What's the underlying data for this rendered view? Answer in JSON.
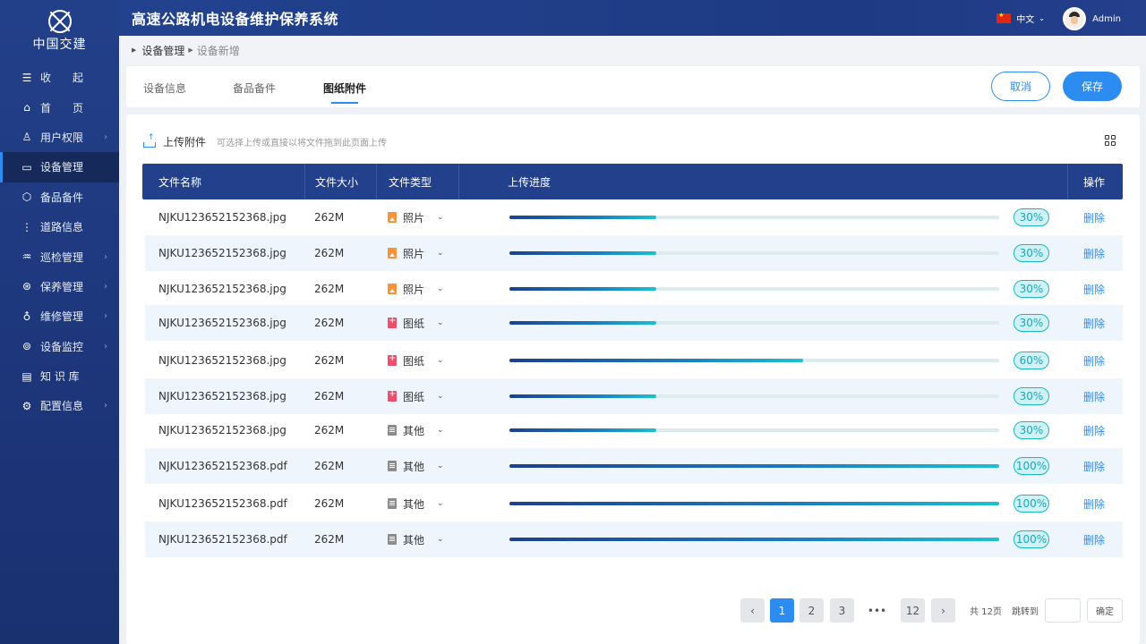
{
  "sidebar": {
    "logo_text": "中国交建",
    "items": [
      {
        "label": "收　　起",
        "icon": "☰",
        "has_arrow": false
      },
      {
        "label": "首　　页",
        "icon": "⌂",
        "has_arrow": false
      },
      {
        "label": "用户权限",
        "icon": "♙",
        "has_arrow": true
      },
      {
        "label": "设备管理",
        "icon": "▭",
        "has_arrow": false
      },
      {
        "label": "备品备件",
        "icon": "⬡",
        "has_arrow": false
      },
      {
        "label": "道路信息",
        "icon": "⋮",
        "has_arrow": false
      },
      {
        "label": "巡检管理",
        "icon": "♒",
        "has_arrow": true
      },
      {
        "label": "保养管理",
        "icon": "⊛",
        "has_arrow": true
      },
      {
        "label": "维修管理",
        "icon": "♁",
        "has_arrow": true
      },
      {
        "label": "设备监控",
        "icon": "⊚",
        "has_arrow": true
      },
      {
        "label": "知 识 库",
        "icon": "▤",
        "has_arrow": false
      },
      {
        "label": "配置信息",
        "icon": "⚙",
        "has_arrow": true
      }
    ]
  },
  "header": {
    "title": "高速公路机电设备维护保养系统",
    "language": "中文",
    "username": "Admin"
  },
  "breadcrumb": {
    "parent": "设备管理",
    "current": "设备新增"
  },
  "tabs": [
    "设备信息",
    "备品备件",
    "图纸附件"
  ],
  "actions": {
    "cancel": "取消",
    "save": "保存"
  },
  "upload": {
    "label": "上传附件",
    "hint": "可选择上传或直接以将文件拖到此页面上传"
  },
  "table": {
    "headers": {
      "name": "文件名称",
      "size": "文件大小",
      "type": "文件类型",
      "progress": "上传进度",
      "action": "操作"
    },
    "delete_label": "删除",
    "rows": [
      {
        "name": "NJKU123652152368.jpg",
        "size": "262M",
        "type": "照片",
        "type_icon": "photo-icon",
        "progress": 30,
        "progress_text": "30%"
      },
      {
        "name": "NJKU123652152368.jpg",
        "size": "262M",
        "type": "照片",
        "type_icon": "photo-icon",
        "progress": 30,
        "progress_text": "30%"
      },
      {
        "name": "NJKU123652152368.jpg",
        "size": "262M",
        "type": "照片",
        "type_icon": "photo-icon",
        "progress": 30,
        "progress_text": "30%"
      },
      {
        "name": "NJKU123652152368.jpg",
        "size": "262M",
        "type": "图纸",
        "type_icon": "drawing-icon",
        "progress": 30,
        "progress_text": "30%"
      },
      {
        "name": "NJKU123652152368.jpg",
        "size": "262M",
        "type": "图纸",
        "type_icon": "drawing-icon",
        "progress": 60,
        "progress_text": "60%"
      },
      {
        "name": "NJKU123652152368.jpg",
        "size": "262M",
        "type": "图纸",
        "type_icon": "drawing-icon",
        "progress": 30,
        "progress_text": "30%"
      },
      {
        "name": "NJKU123652152368.jpg",
        "size": "262M",
        "type": "其他",
        "type_icon": "document-icon",
        "progress": 30,
        "progress_text": "30%"
      },
      {
        "name": "NJKU123652152368.pdf",
        "size": "262M",
        "type": "其他",
        "type_icon": "document-icon",
        "progress": 100,
        "progress_text": "100%"
      },
      {
        "name": "NJKU123652152368.pdf",
        "size": "262M",
        "type": "其他",
        "type_icon": "document-icon",
        "progress": 100,
        "progress_text": "100%"
      },
      {
        "name": "NJKU123652152368.pdf",
        "size": "262M",
        "type": "其他",
        "type_icon": "document-icon",
        "progress": 100,
        "progress_text": "100%"
      }
    ]
  },
  "pagination": {
    "pages": [
      "1",
      "2",
      "3"
    ],
    "ellipsis": "•••",
    "last": "12",
    "total": "共 12页",
    "jump_label": "跳转到",
    "confirm": "确定"
  },
  "colors": {
    "primary": "#2d8cf0",
    "sidebar": "#1f3a7a",
    "table_header": "#22408c",
    "progress_accent": "#1dc1cf"
  }
}
